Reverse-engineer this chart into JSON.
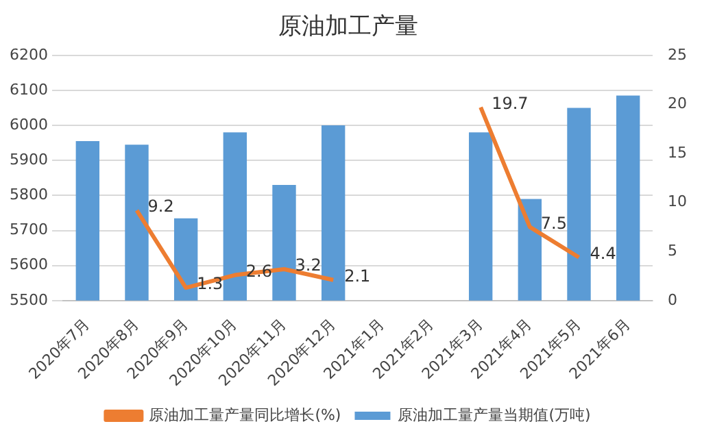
{
  "chart_data": {
    "type": "bar",
    "title": "原油加工产量",
    "categories": [
      "2020年7月",
      "2020年8月",
      "2020年9月",
      "2020年10月",
      "2020年11月",
      "2020年12月",
      "2021年1月",
      "2021年2月",
      "2021年3月",
      "2021年4月",
      "2021年5月",
      "2021年6月"
    ],
    "series": [
      {
        "name": "原油加工量产量当期值(万吨)",
        "color": "#5b9bd5",
        "values": [
          5955,
          5945,
          5735,
          5980,
          5830,
          6000,
          null,
          null,
          5980,
          5790,
          6050,
          6085
        ]
      },
      {
        "name": "原油加工量产量同比增长(%)",
        "type": "line",
        "axis": "y2",
        "color": "#ed7d31",
        "values": [
          null,
          9.2,
          1.3,
          2.6,
          3.2,
          2.1,
          null,
          null,
          19.7,
          7.5,
          4.4,
          null
        ],
        "value_labels": [
          null,
          "9.2",
          "1.3",
          "2.6",
          "3.2",
          "2.1",
          null,
          null,
          "19.7",
          "7.5",
          "4.4",
          null
        ]
      }
    ],
    "ylim": [
      5500,
      6200
    ],
    "yticks": [
      5500,
      5600,
      5700,
      5800,
      5900,
      6000,
      6100,
      6200
    ],
    "y2lim": [
      0,
      25
    ],
    "y2ticks": [
      0,
      5,
      10,
      15,
      20,
      25
    ],
    "grid": "y",
    "legend": "bottom",
    "marker": "none"
  }
}
